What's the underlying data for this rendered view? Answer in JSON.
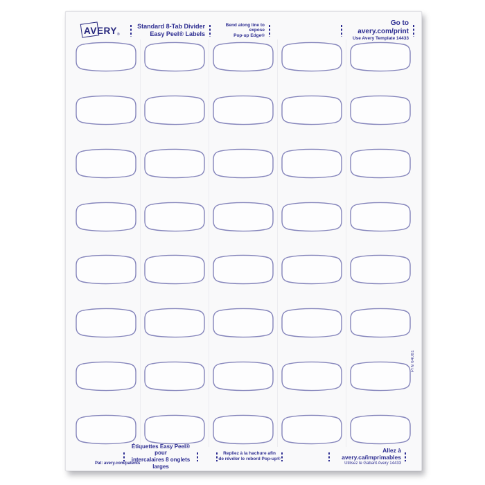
{
  "brand": {
    "logo_text": "AVERY",
    "registered_mark": "®"
  },
  "header": {
    "product_line1": "Standard 8-Tab Divider",
    "product_line2": "Easy Peel® Labels",
    "bend_line1": "Bend along line to expose",
    "bend_line2": "Pop-up Edge®",
    "print_line1": "Go to avery.com/print",
    "print_line2": "Use Avery Template 14433"
  },
  "footer": {
    "patent": "Pat: avery.com/patents",
    "product_fr_line1": "Étiquettes Easy Peel® pour",
    "product_fr_line2": "intercalaires 8 onglets larges",
    "bend_fr_line1": "Repliez à la hachure afin",
    "bend_fr_line2": "de révéler le rebord Pop-up®",
    "print_fr_line1": "Allez à avery.ca/imprimables",
    "print_fr_line2": "Utilisez le Gabarit Avery 14433"
  },
  "side": {
    "part_number": "P/N 64081"
  },
  "grid": {
    "rows": 8,
    "columns": 5,
    "label_count": 40
  },
  "colors": {
    "ink_navy": "#2d2d91",
    "logo_navy": "#26267d",
    "label_outline": "#8383ba",
    "label_fill": "#fdfdfe",
    "sheet_background": "#f9f9fa"
  }
}
